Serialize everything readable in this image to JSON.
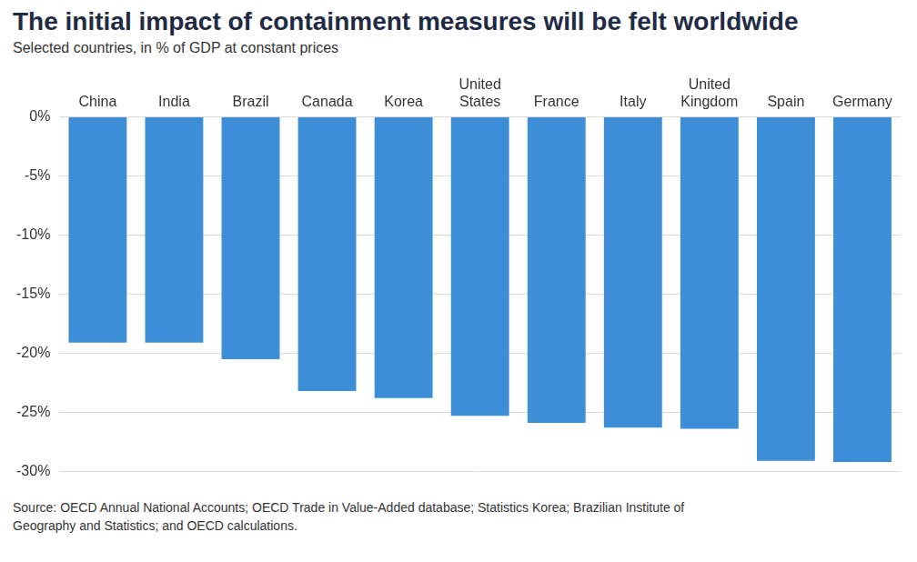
{
  "chart_data": {
    "type": "bar",
    "title": "The initial impact of containment measures will be felt worldwide",
    "subtitle": "Selected countries, in % of GDP at constant prices",
    "source": "Source: OECD Annual National Accounts; OECD Trade in Value-Added database; Statistics Korea; Brazilian Institute of Geography and Statistics; and OECD calculations.",
    "categories": [
      "China",
      "India",
      "Brazil",
      "Canada",
      "Korea",
      "United States",
      "France",
      "Italy",
      "United Kingdom",
      "Spain",
      "Germany"
    ],
    "values": [
      -19.1,
      -19.1,
      -20.5,
      -23.2,
      -23.8,
      -25.3,
      -25.9,
      -26.3,
      -26.4,
      -29.1,
      -29.2
    ],
    "color": "#3d8ed6",
    "ylim": [
      -30,
      0
    ],
    "yticks": [
      {
        "value": 0,
        "label": "0%"
      },
      {
        "value": -5,
        "label": "-5%"
      },
      {
        "value": -10,
        "label": "-10%"
      },
      {
        "value": -15,
        "label": "-15%"
      },
      {
        "value": -20,
        "label": "-20%"
      },
      {
        "value": -25,
        "label": "-25%"
      },
      {
        "value": -30,
        "label": "-30%"
      }
    ],
    "grid": true
  }
}
